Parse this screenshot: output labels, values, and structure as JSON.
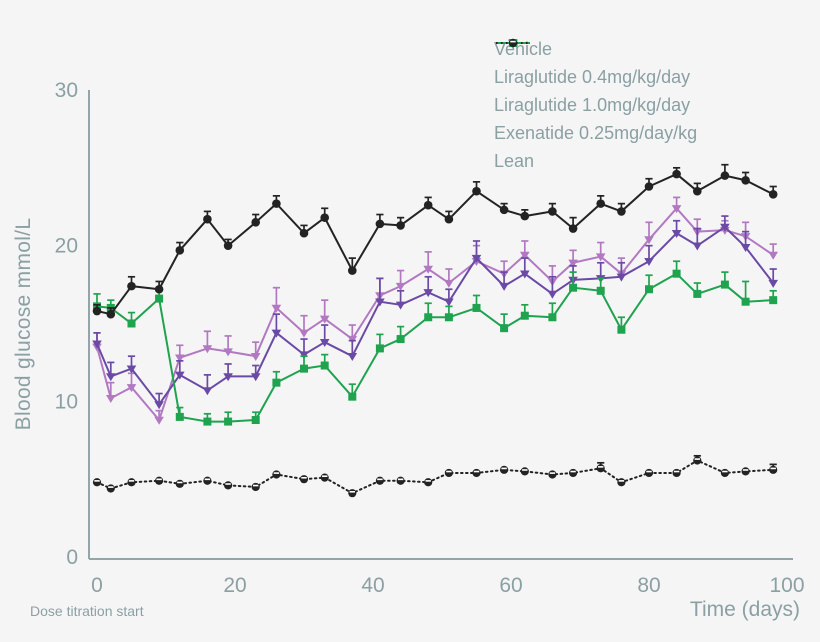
{
  "figure": {
    "background": "#f5f5f6",
    "text_color": "#8aa0a3",
    "axis_color": "#93a5a8",
    "footnote": "Dose titration start"
  },
  "chart_data": {
    "type": "line",
    "title": "",
    "xlabel": "Time (days)",
    "ylabel": "Blood glucose mmol/L",
    "xlim": [
      0,
      100
    ],
    "ylim": [
      0,
      30
    ],
    "xticks": [
      0,
      20,
      40,
      60,
      80,
      100
    ],
    "yticks": [
      0,
      10,
      20,
      30
    ],
    "grid": false,
    "legend_position": "top-right",
    "error_bars": "upper-whisker",
    "x_days": [
      0,
      2,
      5,
      9,
      12,
      16,
      19,
      23,
      26,
      30,
      33,
      37,
      41,
      44,
      48,
      51,
      55,
      59,
      62,
      66,
      69,
      73,
      76,
      80,
      84,
      87,
      91,
      94,
      98
    ],
    "series": [
      {
        "name": "Vehicle",
        "color": "#232323",
        "marker": "circle",
        "line": "solid",
        "values": [
          15.8,
          15.6,
          17.4,
          17.2,
          19.7,
          21.7,
          20.0,
          21.5,
          22.7,
          20.8,
          21.8,
          18.4,
          21.4,
          21.3,
          22.6,
          21.7,
          23.5,
          22.3,
          21.9,
          22.2,
          21.1,
          22.7,
          22.2,
          23.8,
          24.6,
          23.5,
          24.5,
          24.2,
          23.3
        ],
        "err_up": [
          0.4,
          0.4,
          0.6,
          0.5,
          0.5,
          0.5,
          0.4,
          0.5,
          0.5,
          0.5,
          0.6,
          0.8,
          0.6,
          0.5,
          0.5,
          0.5,
          0.6,
          0.4,
          0.4,
          0.5,
          0.7,
          0.5,
          0.5,
          0.5,
          0.4,
          0.5,
          0.7,
          0.5,
          0.5
        ]
      },
      {
        "name": "Liraglutide 0.4mg/kg/day",
        "color": "#b279c2",
        "marker": "triangle-down",
        "line": "solid",
        "values": [
          13.5,
          10.2,
          10.9,
          8.8,
          12.8,
          13.4,
          13.2,
          12.9,
          16.0,
          14.4,
          15.3,
          14.0,
          16.8,
          17.4,
          18.5,
          17.6,
          19.0,
          18.2,
          19.4,
          17.7,
          18.9,
          19.3,
          18.2,
          20.4,
          22.4,
          20.9,
          21.0,
          20.6,
          19.4
        ],
        "err_up": [
          0.9,
          1.0,
          0.9,
          0.6,
          0.8,
          1.1,
          1.0,
          0.9,
          1.3,
          1.1,
          1.2,
          0.9,
          1.1,
          1.0,
          1.1,
          0.9,
          1.0,
          0.8,
          0.9,
          1.0,
          0.8,
          0.9,
          1.0,
          1.1,
          0.7,
          0.8,
          0.6,
          0.9,
          0.7
        ]
      },
      {
        "name": "Liraglutide 1.0mg/kg/day",
        "color": "#6a4aa5",
        "marker": "triangle-down",
        "line": "solid",
        "values": [
          13.7,
          11.6,
          12.1,
          9.8,
          11.7,
          10.7,
          11.6,
          11.6,
          14.4,
          13.0,
          13.8,
          12.9,
          16.4,
          16.2,
          17.0,
          16.4,
          19.2,
          17.4,
          18.2,
          16.9,
          17.8,
          17.9,
          18.0,
          19.0,
          20.8,
          20.0,
          21.2,
          19.9,
          17.6
        ],
        "err_up": [
          0.7,
          0.9,
          0.8,
          0.7,
          0.9,
          1.0,
          0.8,
          0.7,
          1.2,
          1.0,
          1.1,
          1.0,
          1.5,
          0.9,
          1.0,
          0.8,
          1.1,
          0.9,
          1.0,
          1.1,
          0.9,
          1.0,
          0.9,
          1.0,
          0.8,
          1.1,
          0.7,
          1.0,
          0.9
        ]
      },
      {
        "name": "Exenatide 0.25mg/day/kg",
        "color": "#1fa34f",
        "marker": "square",
        "line": "solid",
        "values": [
          16.1,
          16.0,
          15.0,
          16.6,
          9.0,
          8.7,
          8.7,
          8.8,
          11.2,
          12.1,
          12.3,
          10.3,
          13.4,
          14.0,
          15.4,
          15.4,
          16.0,
          14.7,
          15.5,
          15.4,
          17.3,
          17.1,
          14.6,
          17.2,
          18.2,
          16.9,
          17.5,
          16.4,
          16.5
        ],
        "err_up": [
          0.8,
          0.5,
          0.7,
          0.5,
          0.6,
          0.5,
          0.6,
          0.5,
          0.7,
          0.8,
          0.7,
          0.8,
          0.9,
          0.8,
          0.9,
          0.7,
          0.8,
          0.9,
          0.7,
          0.9,
          1.0,
          0.8,
          0.8,
          0.9,
          0.8,
          0.7,
          0.8,
          1.3,
          0.6
        ]
      },
      {
        "name": "Lean",
        "color": "#232323",
        "marker": "half-circle",
        "line": "dotted",
        "values": [
          4.8,
          4.4,
          4.8,
          4.9,
          4.7,
          4.9,
          4.6,
          4.5,
          5.3,
          5.0,
          5.1,
          4.1,
          4.9,
          4.9,
          4.8,
          5.4,
          5.4,
          5.6,
          5.5,
          5.3,
          5.4,
          5.7,
          4.8,
          5.4,
          5.4,
          6.2,
          5.4,
          5.5,
          5.6
        ],
        "err_up": [
          0.1,
          0.1,
          0.1,
          0.1,
          0.1,
          0.1,
          0.1,
          0.1,
          0.1,
          0.1,
          0.1,
          0.1,
          0.1,
          0.1,
          0.1,
          0.1,
          0.1,
          0.1,
          0.1,
          0.1,
          0.1,
          0.35,
          0.1,
          0.1,
          0.1,
          0.3,
          0.1,
          0.1,
          0.35
        ]
      }
    ]
  }
}
